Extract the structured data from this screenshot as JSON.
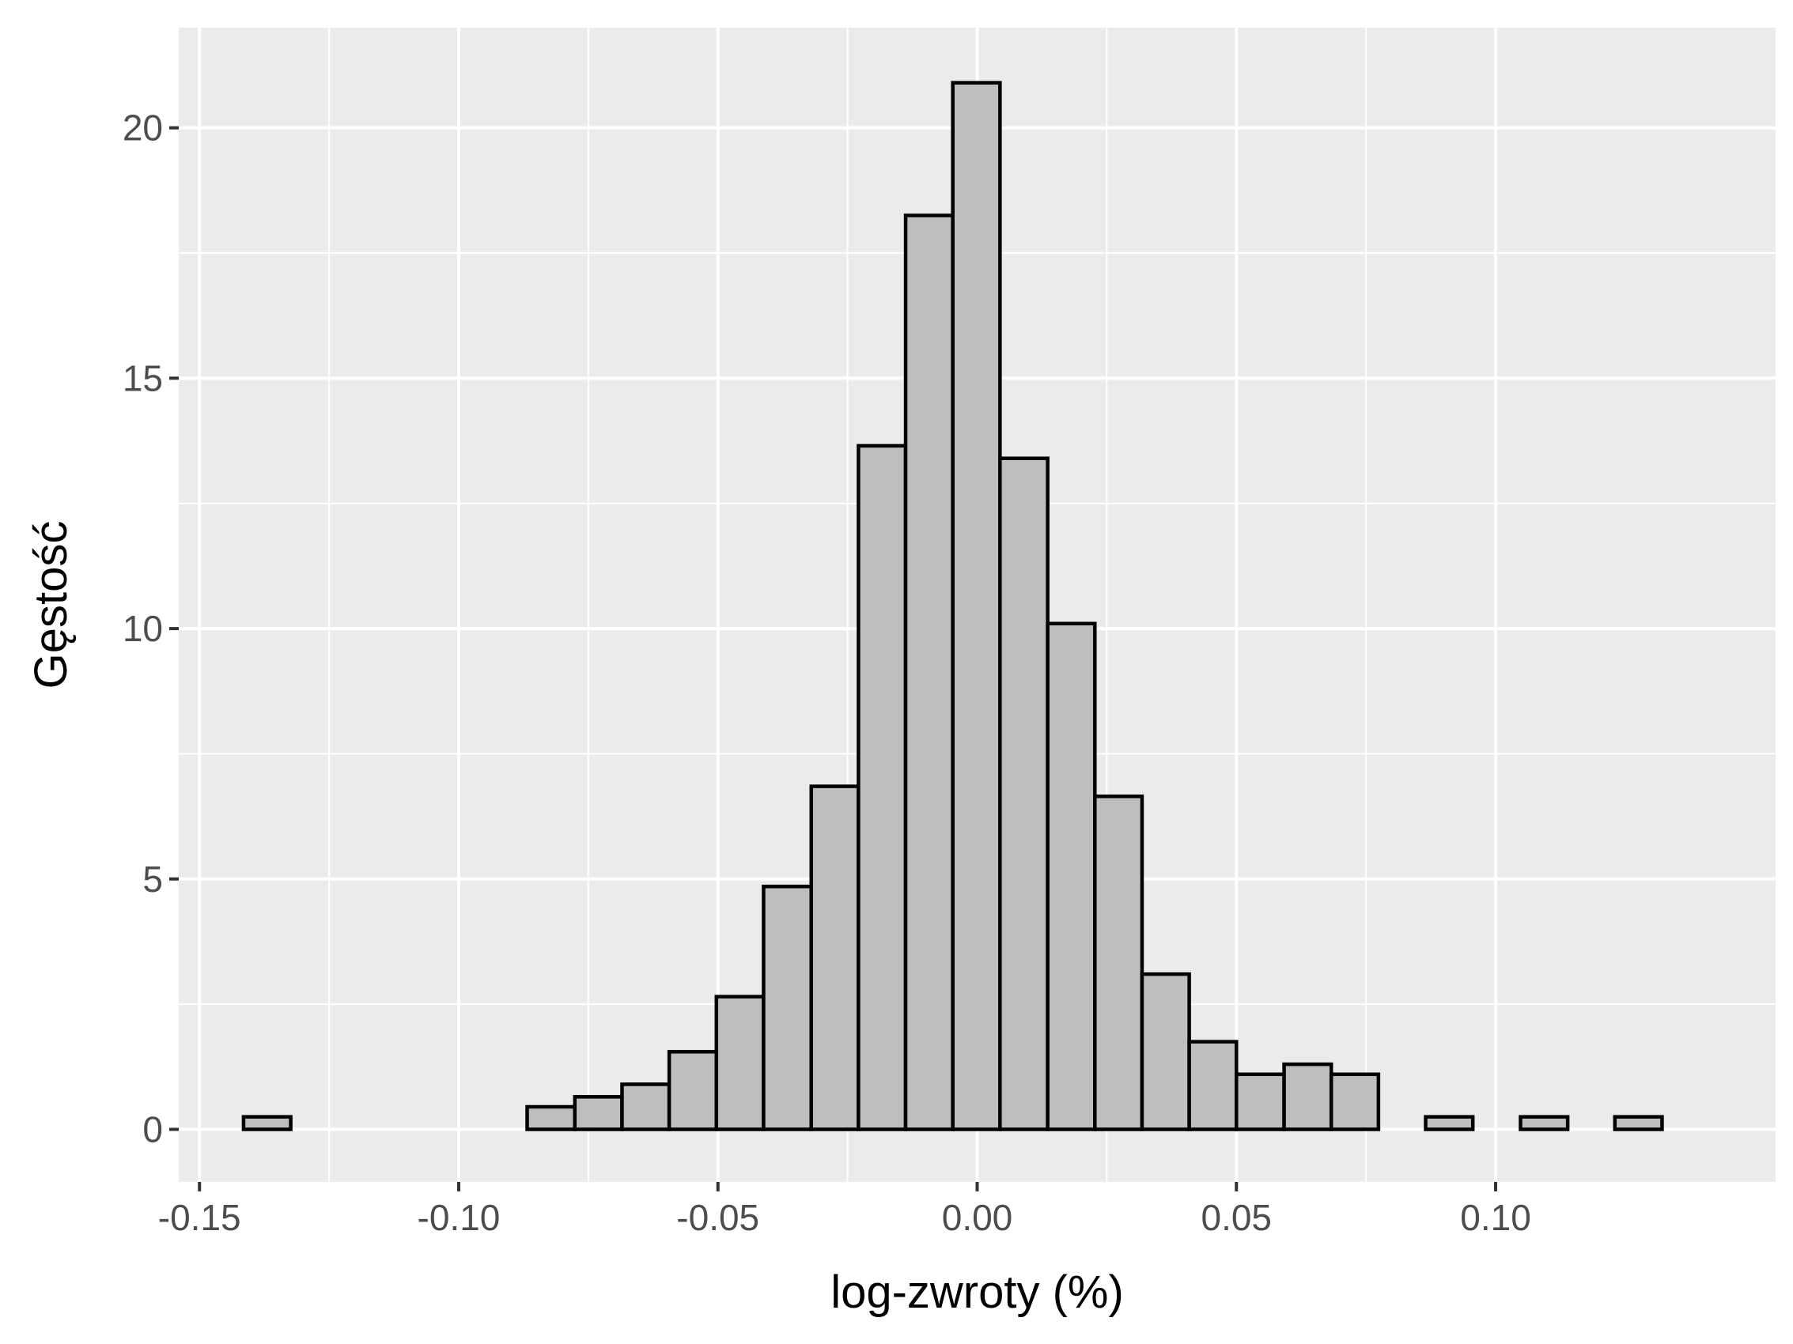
{
  "chart_data": {
    "type": "histogram",
    "xlabel": "log-zwroty (%)",
    "ylabel": "Gęstość",
    "xlim": [
      -0.154,
      0.154
    ],
    "ylim": [
      -1.05,
      22.0
    ],
    "x_ticks": [
      -0.15,
      -0.1,
      -0.05,
      0.0,
      0.05,
      0.1
    ],
    "x_tick_labels": [
      "-0.15",
      "-0.10",
      "-0.05",
      "0.00",
      "0.05",
      "0.10"
    ],
    "y_ticks": [
      0,
      5,
      10,
      15,
      20
    ],
    "y_tick_labels": [
      "0",
      "5",
      "10",
      "15",
      "20"
    ],
    "bin_width": 0.00912,
    "bins": [
      {
        "x0": -0.1415,
        "x1": -0.1324,
        "density": 0.25
      },
      {
        "x0": -0.1324,
        "x1": -0.1232,
        "density": 0
      },
      {
        "x0": -0.1232,
        "x1": -0.1141,
        "density": 0
      },
      {
        "x0": -0.1141,
        "x1": -0.105,
        "density": 0
      },
      {
        "x0": -0.105,
        "x1": -0.0959,
        "density": 0
      },
      {
        "x0": -0.0959,
        "x1": -0.0868,
        "density": 0
      },
      {
        "x0": -0.0868,
        "x1": -0.0776,
        "density": 0.45
      },
      {
        "x0": -0.0776,
        "x1": -0.0685,
        "density": 0.65
      },
      {
        "x0": -0.0685,
        "x1": -0.0594,
        "density": 0.9
      },
      {
        "x0": -0.0594,
        "x1": -0.0503,
        "density": 1.55
      },
      {
        "x0": -0.0503,
        "x1": -0.0412,
        "density": 2.65
      },
      {
        "x0": -0.0412,
        "x1": -0.032,
        "density": 4.85
      },
      {
        "x0": -0.032,
        "x1": -0.0229,
        "density": 6.85
      },
      {
        "x0": -0.0229,
        "x1": -0.0138,
        "density": 13.65
      },
      {
        "x0": -0.0138,
        "x1": -0.0047,
        "density": 18.25
      },
      {
        "x0": -0.0047,
        "x1": 0.0044,
        "density": 20.9
      },
      {
        "x0": 0.0044,
        "x1": 0.0136,
        "density": 13.4
      },
      {
        "x0": 0.0136,
        "x1": 0.0227,
        "density": 10.1
      },
      {
        "x0": 0.0227,
        "x1": 0.0318,
        "density": 6.65
      },
      {
        "x0": 0.0318,
        "x1": 0.0409,
        "density": 3.1
      },
      {
        "x0": 0.0409,
        "x1": 0.05,
        "density": 1.75
      },
      {
        "x0": 0.05,
        "x1": 0.0592,
        "density": 1.1
      },
      {
        "x0": 0.0592,
        "x1": 0.0683,
        "density": 1.3
      },
      {
        "x0": 0.0683,
        "x1": 0.0774,
        "density": 1.1
      },
      {
        "x0": 0.0774,
        "x1": 0.0865,
        "density": 0
      },
      {
        "x0": 0.0865,
        "x1": 0.0956,
        "density": 0.25
      },
      {
        "x0": 0.0956,
        "x1": 0.1048,
        "density": 0
      },
      {
        "x0": 0.1048,
        "x1": 0.1139,
        "density": 0.25
      },
      {
        "x0": 0.1139,
        "x1": 0.123,
        "density": 0
      },
      {
        "x0": 0.123,
        "x1": 0.1321,
        "density": 0.25
      }
    ],
    "grid": true,
    "legend": "none",
    "colors": {
      "panel_background": "#ebebeb",
      "grid": "#ffffff",
      "bar_fill": "#bebebe",
      "bar_outline": "#000000",
      "tick_text": "#4d4d4d",
      "title_text": "#000000"
    }
  }
}
